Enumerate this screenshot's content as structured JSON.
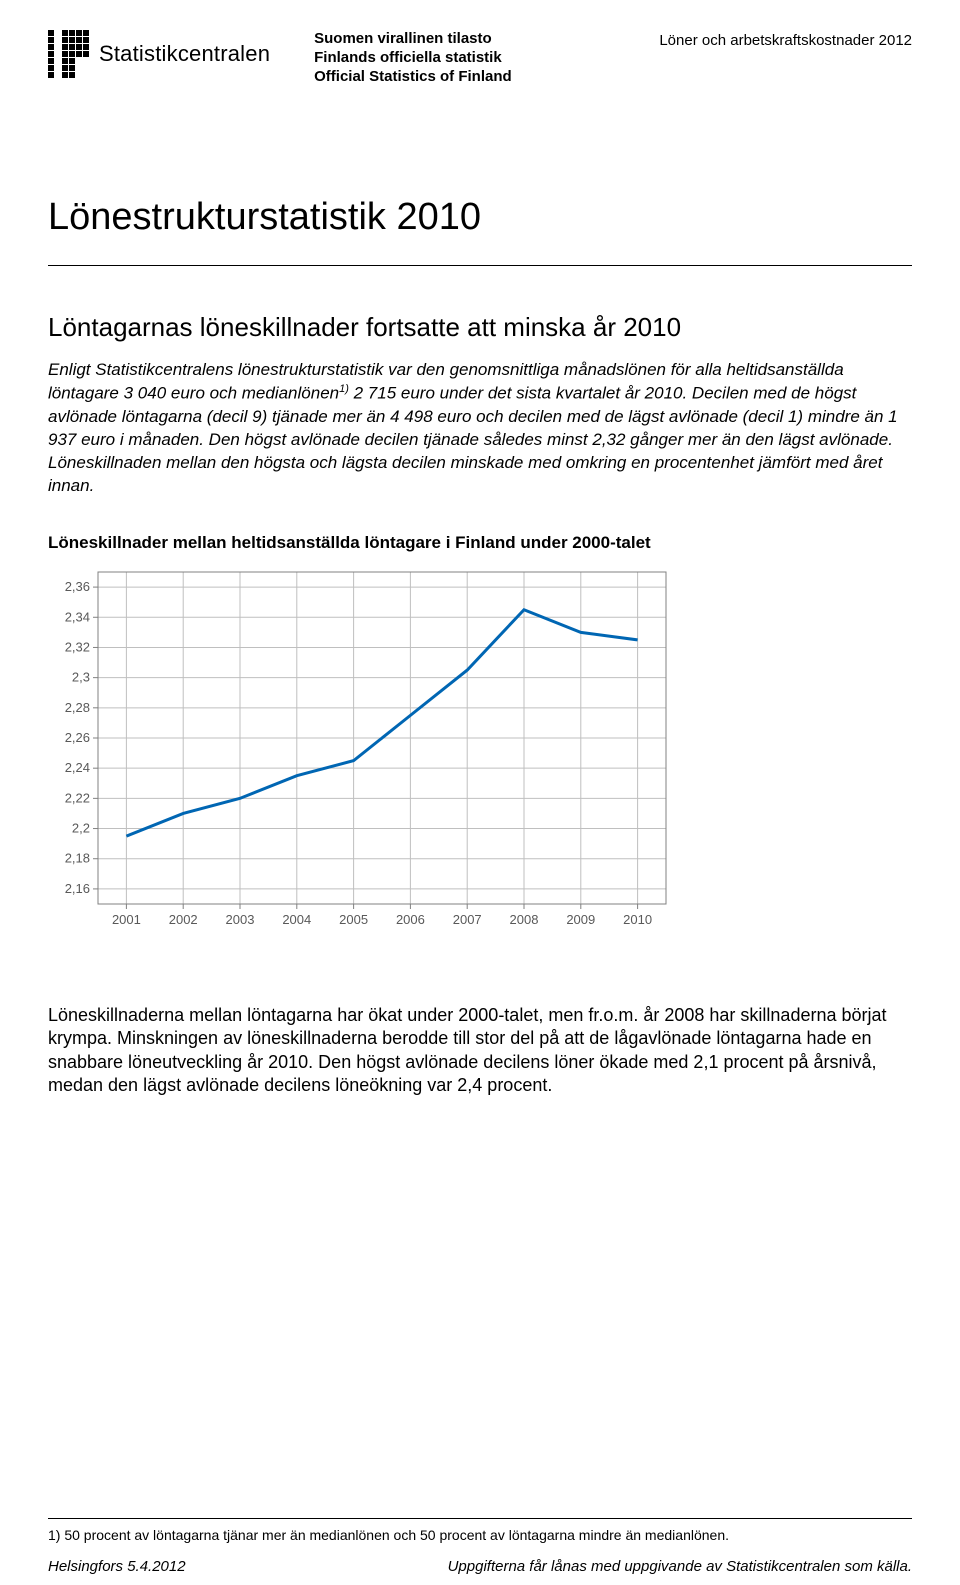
{
  "header": {
    "brand": "Statistikcentralen",
    "tagline1": "Suomen virallinen tilasto",
    "tagline2": "Finlands officiella statistik",
    "tagline3": "Official Statistics of Finland",
    "category": "Löner och arbetskraftskostnader 2012"
  },
  "title": "Lönestrukturstatistik 2010",
  "subtitle": "Löntagarnas löneskillnader fortsatte att minska år 2010",
  "intro_part1": "Enligt Statistikcentralens lönestrukturstatistik var den genomsnittliga månadslönen för alla heltidsanställda löntagare 3 040 euro och medianlönen",
  "intro_sup": "1)",
  "intro_part2": " 2 715 euro under det sista kvartalet år 2010. Decilen med de högst avlönade löntagarna (decil 9) tjänade mer än 4 498 euro och decilen med de lägst avlönade (decil 1) mindre än 1 937 euro i månaden. Den högst avlönade decilen tjänade således minst 2,32 gånger mer än den lägst avlönade. Löneskillnaden mellan den högsta och lägsta decilen minskade med omkring en procentenhet jämfört med året innan.",
  "chart": {
    "title": "Löneskillnader mellan heltidsanställda löntagare i Finland under 2000-talet",
    "type": "line",
    "x": [
      2001,
      2002,
      2003,
      2004,
      2005,
      2006,
      2007,
      2008,
      2009,
      2010
    ],
    "y": [
      2.195,
      2.21,
      2.22,
      2.235,
      2.245,
      2.275,
      2.305,
      2.345,
      2.33,
      2.325
    ],
    "yticks": [
      2.16,
      2.18,
      2.2,
      2.22,
      2.24,
      2.26,
      2.28,
      2.3,
      2.32,
      2.34,
      2.36
    ],
    "yticklabels": [
      "2,16",
      "2,18",
      "2,2",
      "2,22",
      "2,24",
      "2,26",
      "2,28",
      "2,3",
      "2,32",
      "2,34",
      "2,36"
    ],
    "xticklabels": [
      "2001",
      "2002",
      "2003",
      "2004",
      "2005",
      "2006",
      "2007",
      "2008",
      "2009",
      "2010"
    ],
    "ylim": [
      2.15,
      2.37
    ],
    "line_color": "#0066b3",
    "line_width": 3,
    "grid_color": "#bfbfbf",
    "axis_color": "#808080",
    "background_color": "#ffffff",
    "tick_fontsize": 13,
    "tick_color": "#595959"
  },
  "para": "Löneskillnaderna mellan löntagarna har ökat under 2000-talet, men fr.o.m. år 2008 har skillnaderna börjat krympa. Minskningen av löneskillnaderna berodde till stor del på att de lågavlönade löntagarna hade en snabbare löneutveckling år 2010. Den högst avlönade decilens löner ökade med 2,1 procent på årsnivå, medan den lägst avlönade decilens löneökning var 2,4 procent.",
  "footnote": "1) 50 procent av löntagarna tjänar mer än medianlönen och 50 procent av löntagarna mindre än medianlönen.",
  "footer": {
    "left": "Helsingfors 5.4.2012",
    "right": "Uppgifterna får lånas med uppgivande av Statistikcentralen som källa."
  },
  "logo_pattern": [
    [
      1,
      0,
      1,
      1,
      1,
      1
    ],
    [
      1,
      0,
      1,
      1,
      1,
      1
    ],
    [
      1,
      0,
      1,
      1,
      1,
      1
    ],
    [
      1,
      0,
      1,
      1,
      1,
      1
    ],
    [
      1,
      0,
      1,
      1,
      0,
      0
    ],
    [
      1,
      0,
      1,
      1,
      0,
      0
    ],
    [
      1,
      0,
      1,
      1,
      0,
      0
    ]
  ]
}
